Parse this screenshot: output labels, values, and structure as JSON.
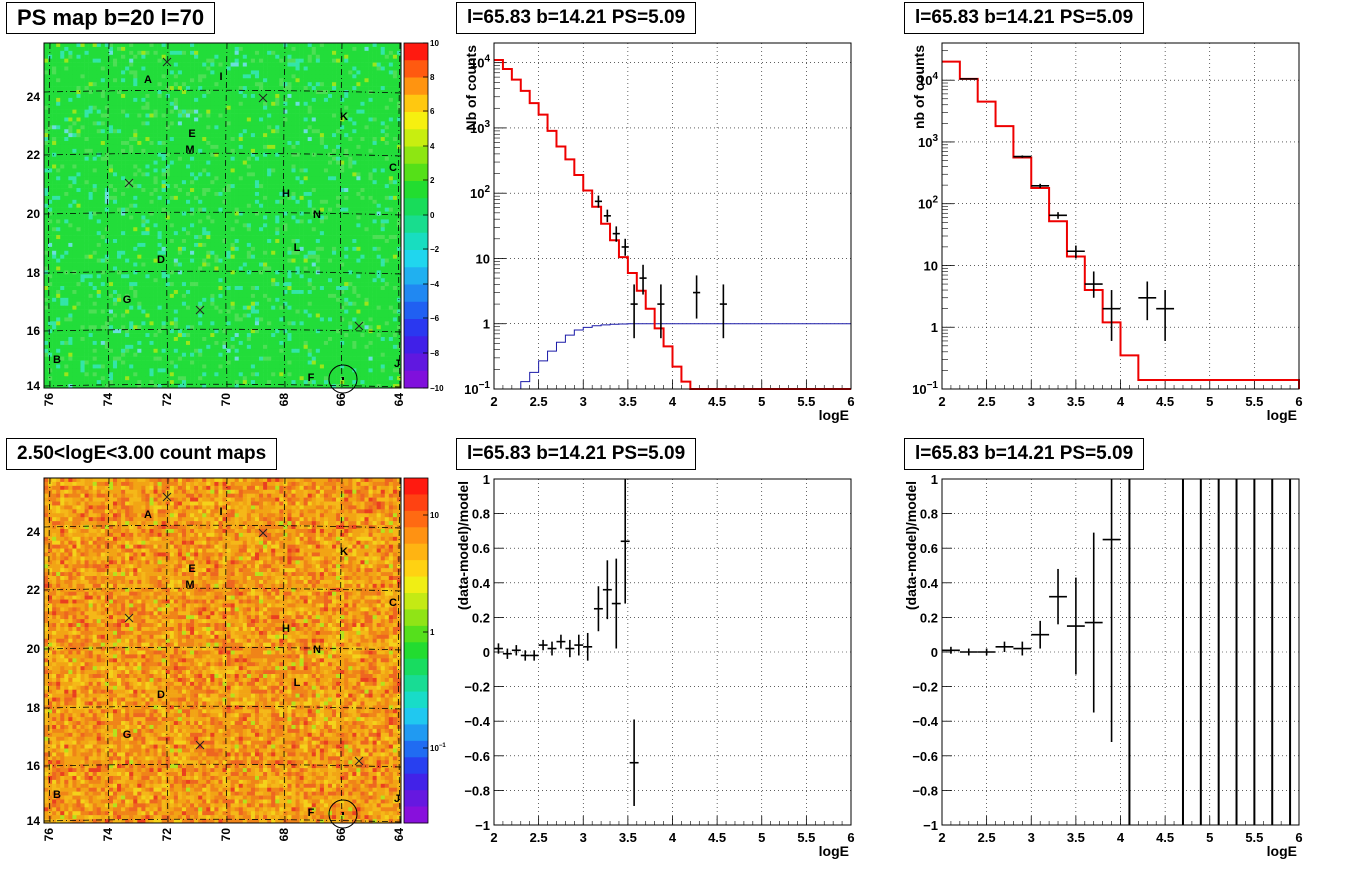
{
  "panels": {
    "map1_title": "PS map b=20 l=70",
    "map2_title": "2.50<logE<3.00 count maps",
    "spec1_title": "l=65.83 b=14.21 PS=5.09",
    "spec2_title": "l=65.83 b=14.21 PS=5.09",
    "res1_title": "l=65.83 b=14.21 PS=5.09",
    "res2_title": "l=65.83 b=14.21 PS=5.09"
  },
  "chart_data": [
    {
      "id": "ps-map",
      "type": "heatmap",
      "title": "PS map b=20 l=70",
      "x_ticks": [
        "76",
        "74",
        "72",
        "70",
        "68",
        "66",
        "64"
      ],
      "y_ticks": [
        "14",
        "16",
        "18",
        "20",
        "22",
        "24"
      ],
      "colorbar_ticks": [
        "10",
        "8",
        "6",
        "4",
        "2",
        "0",
        "−2",
        "−4",
        "−6",
        "−8",
        "−10"
      ],
      "sources": [
        "A",
        "I",
        "K",
        "E",
        "M",
        "C",
        "H",
        "N",
        "L",
        "D",
        "G",
        "B",
        "F",
        "J"
      ]
    },
    {
      "id": "spectrum-1",
      "type": "line",
      "title": "l=65.83 b=14.21 PS=5.09",
      "xlabel": "logE",
      "ylabel": "Nb of counts",
      "xlim": [
        2,
        6
      ],
      "ylim": [
        0.1,
        20000
      ],
      "log_y": true,
      "x_ticks": [
        "2",
        "2.5",
        "3",
        "3.5",
        "4",
        "4.5",
        "5",
        "5.5",
        "6"
      ],
      "y_ticks": [
        "10^-1",
        "1",
        "10",
        "10^2",
        "10^3",
        "10^4"
      ],
      "grid": true,
      "model_steps": {
        "edges": [
          2,
          2.1,
          2.2,
          2.3,
          2.4,
          2.5,
          2.6,
          2.7,
          2.8,
          2.9,
          3.0,
          3.1,
          3.2,
          3.3,
          3.4,
          3.5,
          3.6,
          3.7,
          3.8,
          3.9,
          4.0,
          4.1,
          4.2,
          6.0
        ],
        "values": [
          11000,
          8000,
          5500,
          3700,
          2400,
          1600,
          900,
          520,
          330,
          190,
          110,
          62,
          34,
          19,
          10.5,
          6.0,
          3.2,
          1.7,
          0.85,
          0.45,
          0.22,
          0.13,
          0.1
        ]
      },
      "blue_steps": {
        "edges": [
          2,
          2.1,
          2.2,
          2.3,
          2.4,
          2.5,
          2.6,
          2.7,
          2.8,
          2.9,
          3.0,
          3.1,
          3.2,
          3.3,
          3.4,
          3.5,
          6.0
        ],
        "values": [
          0.1,
          0.1,
          0.1,
          0.13,
          0.18,
          0.27,
          0.38,
          0.52,
          0.67,
          0.8,
          0.88,
          0.93,
          0.96,
          0.98,
          0.99,
          1,
          1
        ]
      },
      "points": [
        {
          "x": 3.17,
          "y": 75,
          "lo": 60,
          "hi": 92
        },
        {
          "x": 3.27,
          "y": 45,
          "lo": 36,
          "hi": 56
        },
        {
          "x": 3.37,
          "y": 24,
          "lo": 18,
          "hi": 31
        },
        {
          "x": 3.47,
          "y": 15,
          "lo": 11,
          "hi": 20
        },
        {
          "x": 3.57,
          "y": 2,
          "lo": 0.6,
          "hi": 4
        },
        {
          "x": 3.67,
          "y": 5,
          "lo": 2.8,
          "hi": 8
        },
        {
          "x": 3.87,
          "y": 2,
          "lo": 0.6,
          "hi": 4
        },
        {
          "x": 4.27,
          "y": 3,
          "lo": 1.2,
          "hi": 5.5
        },
        {
          "x": 4.57,
          "y": 2,
          "lo": 0.6,
          "hi": 4
        }
      ]
    },
    {
      "id": "spectrum-2",
      "type": "line",
      "title": "l=65.83 b=14.21 PS=5.09",
      "xlabel": "logE",
      "ylabel": "nb of counts",
      "xlim": [
        2,
        6
      ],
      "ylim": [
        0.1,
        40000
      ],
      "log_y": true,
      "x_ticks": [
        "2",
        "2.5",
        "3",
        "3.5",
        "4",
        "4.5",
        "5",
        "5.5",
        "6"
      ],
      "y_ticks": [
        "10^-1",
        "1",
        "10",
        "10^2",
        "10^3",
        "10^4"
      ],
      "grid": true,
      "model_steps": {
        "edges": [
          2,
          2.2,
          2.4,
          2.6,
          2.8,
          3.0,
          3.2,
          3.4,
          3.6,
          3.8,
          4.0,
          4.2,
          6.0
        ],
        "values": [
          20000,
          10500,
          4500,
          1800,
          560,
          180,
          52,
          14,
          4.0,
          1.2,
          0.35,
          0.14,
          0.1
        ]
      },
      "points": [
        {
          "x": 2.3,
          "y": 10500,
          "lo": 10300,
          "hi": 10700,
          "xerr": 0.1
        },
        {
          "x": 2.9,
          "y": 580,
          "lo": 555,
          "hi": 605,
          "xerr": 0.1
        },
        {
          "x": 3.1,
          "y": 195,
          "lo": 180,
          "hi": 210,
          "xerr": 0.1
        },
        {
          "x": 3.3,
          "y": 65,
          "lo": 57,
          "hi": 73,
          "xerr": 0.1
        },
        {
          "x": 3.5,
          "y": 17,
          "lo": 13,
          "hi": 21,
          "xerr": 0.1
        },
        {
          "x": 3.7,
          "y": 5,
          "lo": 3,
          "hi": 8,
          "xerr": 0.1
        },
        {
          "x": 3.9,
          "y": 2,
          "lo": 0.6,
          "hi": 4,
          "xerr": 0.1
        },
        {
          "x": 4.3,
          "y": 3,
          "lo": 1.3,
          "hi": 5.5,
          "xerr": 0.1
        },
        {
          "x": 4.5,
          "y": 2,
          "lo": 0.6,
          "hi": 4,
          "xerr": 0.1
        }
      ]
    },
    {
      "id": "count-map",
      "type": "heatmap",
      "title": "2.50<logE<3.00 count maps",
      "x_ticks": [
        "76",
        "74",
        "72",
        "70",
        "68",
        "66",
        "64"
      ],
      "y_ticks": [
        "14",
        "16",
        "18",
        "20",
        "22",
        "24"
      ],
      "colorbar_ticks": [
        "10",
        "1",
        "10^-1"
      ],
      "sources": [
        "A",
        "I",
        "K",
        "E",
        "M",
        "C",
        "H",
        "N",
        "L",
        "D",
        "G",
        "B",
        "F",
        "J"
      ]
    },
    {
      "id": "residual-1",
      "type": "scatter",
      "title": "l=65.83 b=14.21 PS=5.09",
      "xlabel": "logE",
      "ylabel": "(data-model)/model",
      "xlim": [
        2,
        6
      ],
      "ylim": [
        -1,
        1
      ],
      "x_ticks": [
        "2",
        "2.5",
        "3",
        "3.5",
        "4",
        "4.5",
        "5",
        "5.5",
        "6"
      ],
      "y_ticks": [
        "−1",
        "−0.8",
        "−0.6",
        "−0.4",
        "−0.2",
        "0",
        "0.2",
        "0.4",
        "0.6",
        "0.8",
        "1"
      ],
      "grid": true,
      "points": [
        {
          "x": 2.05,
          "y": 0.02,
          "err": 0.03,
          "xerr": 0.05
        },
        {
          "x": 2.15,
          "y": -0.01,
          "err": 0.03,
          "xerr": 0.05
        },
        {
          "x": 2.25,
          "y": 0.01,
          "err": 0.03,
          "xerr": 0.05
        },
        {
          "x": 2.35,
          "y": -0.02,
          "err": 0.03,
          "xerr": 0.05
        },
        {
          "x": 2.45,
          "y": -0.02,
          "err": 0.03,
          "xerr": 0.05
        },
        {
          "x": 2.55,
          "y": 0.04,
          "err": 0.03,
          "xerr": 0.05
        },
        {
          "x": 2.65,
          "y": 0.02,
          "err": 0.04,
          "xerr": 0.05
        },
        {
          "x": 2.75,
          "y": 0.06,
          "err": 0.04,
          "xerr": 0.05
        },
        {
          "x": 2.85,
          "y": 0.02,
          "err": 0.05,
          "xerr": 0.05
        },
        {
          "x": 2.95,
          "y": 0.04,
          "err": 0.06,
          "xerr": 0.05
        },
        {
          "x": 3.05,
          "y": 0.03,
          "err": 0.08,
          "xerr": 0.05
        },
        {
          "x": 3.17,
          "y": 0.25,
          "err": 0.13,
          "xerr": 0.05
        },
        {
          "x": 3.27,
          "y": 0.36,
          "err": 0.17,
          "xerr": 0.05
        },
        {
          "x": 3.37,
          "y": 0.28,
          "err": 0.26,
          "xerr": 0.05
        },
        {
          "x": 3.47,
          "y": 0.64,
          "err": 0.36,
          "xerr": 0.05
        },
        {
          "x": 3.57,
          "y": -0.64,
          "err": 0.25,
          "xerr": 0.05
        }
      ]
    },
    {
      "id": "residual-2",
      "type": "scatter",
      "title": "l=65.83 b=14.21 PS=5.09",
      "xlabel": "logE",
      "ylabel": "(data-model)/model",
      "xlim": [
        2,
        6
      ],
      "ylim": [
        -1,
        1
      ],
      "x_ticks": [
        "2",
        "2.5",
        "3",
        "3.5",
        "4",
        "4.5",
        "5",
        "5.5",
        "6"
      ],
      "y_ticks": [
        "−1",
        "−0.8",
        "−0.6",
        "−0.4",
        "−0.2",
        "0",
        "0.2",
        "0.4",
        "0.6",
        "0.8",
        "1"
      ],
      "grid": true,
      "points": [
        {
          "x": 2.1,
          "y": 0.01,
          "err": 0.02,
          "xerr": 0.1
        },
        {
          "x": 2.3,
          "y": 0.0,
          "err": 0.02,
          "xerr": 0.1
        },
        {
          "x": 2.5,
          "y": 0.0,
          "err": 0.02,
          "xerr": 0.1
        },
        {
          "x": 2.7,
          "y": 0.03,
          "err": 0.03,
          "xerr": 0.1
        },
        {
          "x": 2.9,
          "y": 0.02,
          "err": 0.04,
          "xerr": 0.1
        },
        {
          "x": 3.1,
          "y": 0.1,
          "err": 0.08,
          "xerr": 0.1
        },
        {
          "x": 3.3,
          "y": 0.32,
          "err": 0.16,
          "xerr": 0.1
        },
        {
          "x": 3.5,
          "y": 0.15,
          "err": 0.28,
          "xerr": 0.1
        },
        {
          "x": 3.7,
          "y": 0.17,
          "err": 0.52,
          "xerr": 0.1
        },
        {
          "x": 3.9,
          "y": 0.65,
          "err": 1.17,
          "xerr": 0.1
        }
      ],
      "full_bars_x": [
        4.1,
        4.7,
        4.9,
        5.1,
        5.3,
        5.5,
        5.7,
        5.9
      ]
    }
  ]
}
